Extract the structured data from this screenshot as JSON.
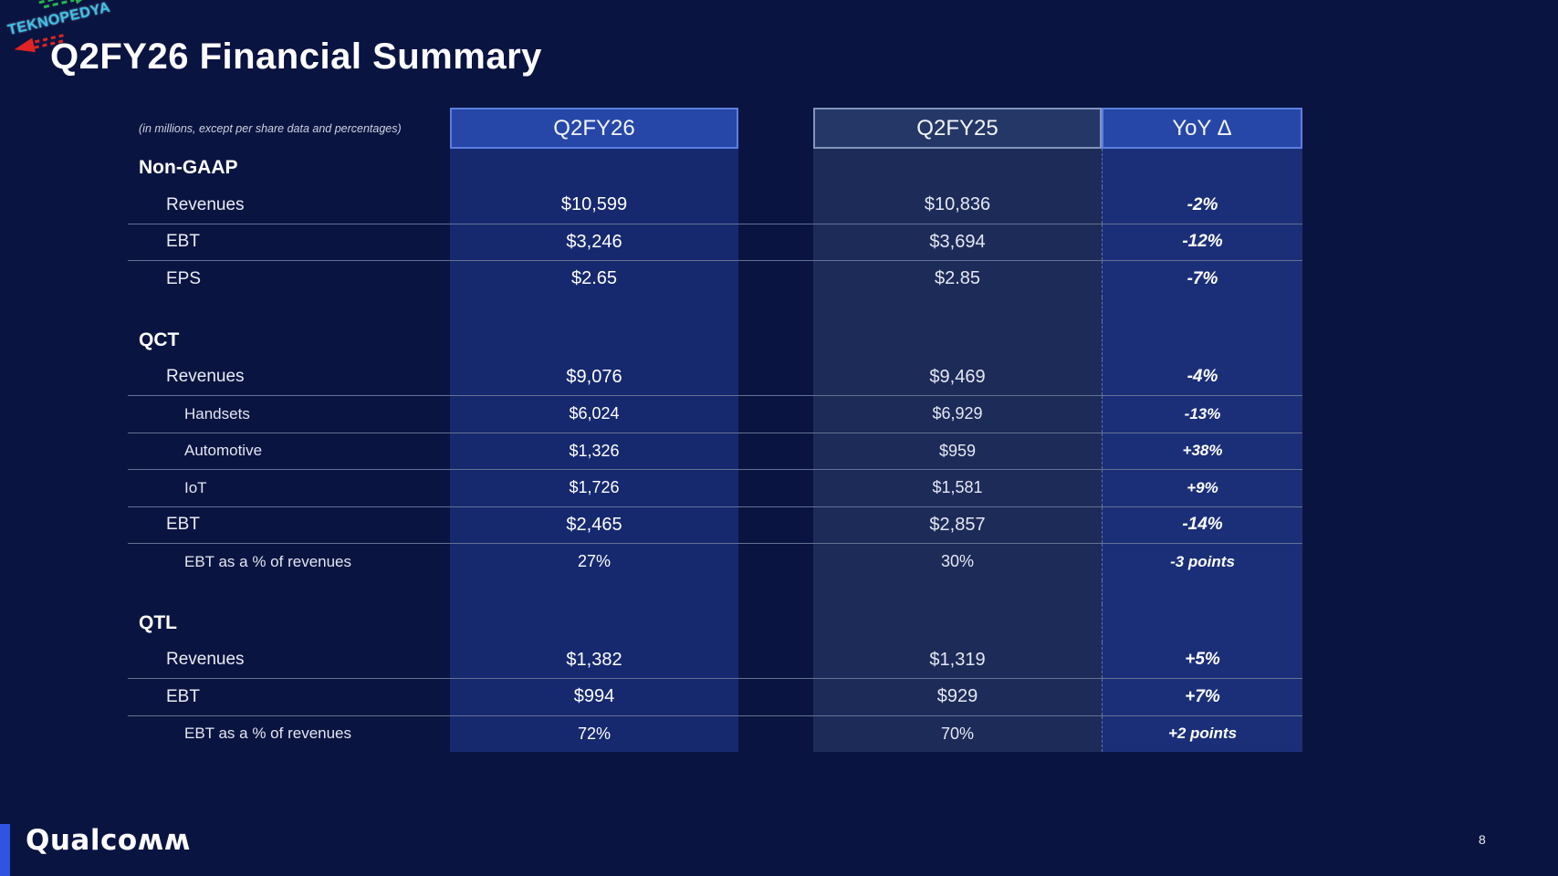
{
  "slide": {
    "title": "Q2FY26 Financial Summary",
    "brand": "Qualcomm",
    "brand_wordmark": "Qualcoʍʍ",
    "page_number": "8"
  },
  "watermark": {
    "text": "TEKNOPEDYA"
  },
  "colors": {
    "background": "#0a1441",
    "q2fy26_band": "#16296f",
    "q2fy25_band": "#1d2b59",
    "yoy_band": "#1b2f78",
    "header_accent_fill": "#2747a8",
    "header_accent_border": "#5b7fe0",
    "header_muted_fill": "#243767",
    "header_muted_border": "#8493ba",
    "footer_accent_bar": "#2f55e0",
    "watermark_text": "#38c5ea",
    "watermark_arrow_green": "#27b34a",
    "watermark_arrow_red": "#e02424"
  },
  "table": {
    "note": "(in millions, except per share data and percentages)",
    "columns": [
      "Q2FY26",
      "Q2FY25",
      "YoY Δ"
    ],
    "sections": [
      {
        "name": "Non-GAAP",
        "rows": [
          {
            "label": "Revenues",
            "indent": 1,
            "q2fy26": "$10,599",
            "q2fy25": "$10,836",
            "yoy": "-2%"
          },
          {
            "label": "EBT",
            "indent": 1,
            "q2fy26": "$3,246",
            "q2fy25": "$3,694",
            "yoy": "-12%"
          },
          {
            "label": "EPS",
            "indent": 1,
            "q2fy26": "$2.65",
            "q2fy25": "$2.85",
            "yoy": "-7%"
          }
        ]
      },
      {
        "name": "QCT",
        "rows": [
          {
            "label": "Revenues",
            "indent": 1,
            "q2fy26": "$9,076",
            "q2fy25": "$9,469",
            "yoy": "-4%"
          },
          {
            "label": "Handsets",
            "indent": 2,
            "q2fy26": "$6,024",
            "q2fy25": "$6,929",
            "yoy": "-13%"
          },
          {
            "label": "Automotive",
            "indent": 2,
            "q2fy26": "$1,326",
            "q2fy25": "$959",
            "yoy": "+38%"
          },
          {
            "label": "IoT",
            "indent": 2,
            "q2fy26": "$1,726",
            "q2fy25": "$1,581",
            "yoy": "+9%"
          },
          {
            "label": "EBT",
            "indent": 1,
            "q2fy26": "$2,465",
            "q2fy25": "$2,857",
            "yoy": "-14%"
          },
          {
            "label": "EBT as a % of revenues",
            "indent": 2,
            "q2fy26": "27%",
            "q2fy25": "30%",
            "yoy": "-3 points"
          }
        ]
      },
      {
        "name": "QTL",
        "rows": [
          {
            "label": "Revenues",
            "indent": 1,
            "q2fy26": "$1,382",
            "q2fy25": "$1,319",
            "yoy": "+5%"
          },
          {
            "label": "EBT",
            "indent": 1,
            "q2fy26": "$994",
            "q2fy25": "$929",
            "yoy": "+7%"
          },
          {
            "label": "EBT as a % of revenues",
            "indent": 2,
            "q2fy26": "72%",
            "q2fy25": "70%",
            "yoy": "+2 points"
          }
        ]
      }
    ]
  }
}
